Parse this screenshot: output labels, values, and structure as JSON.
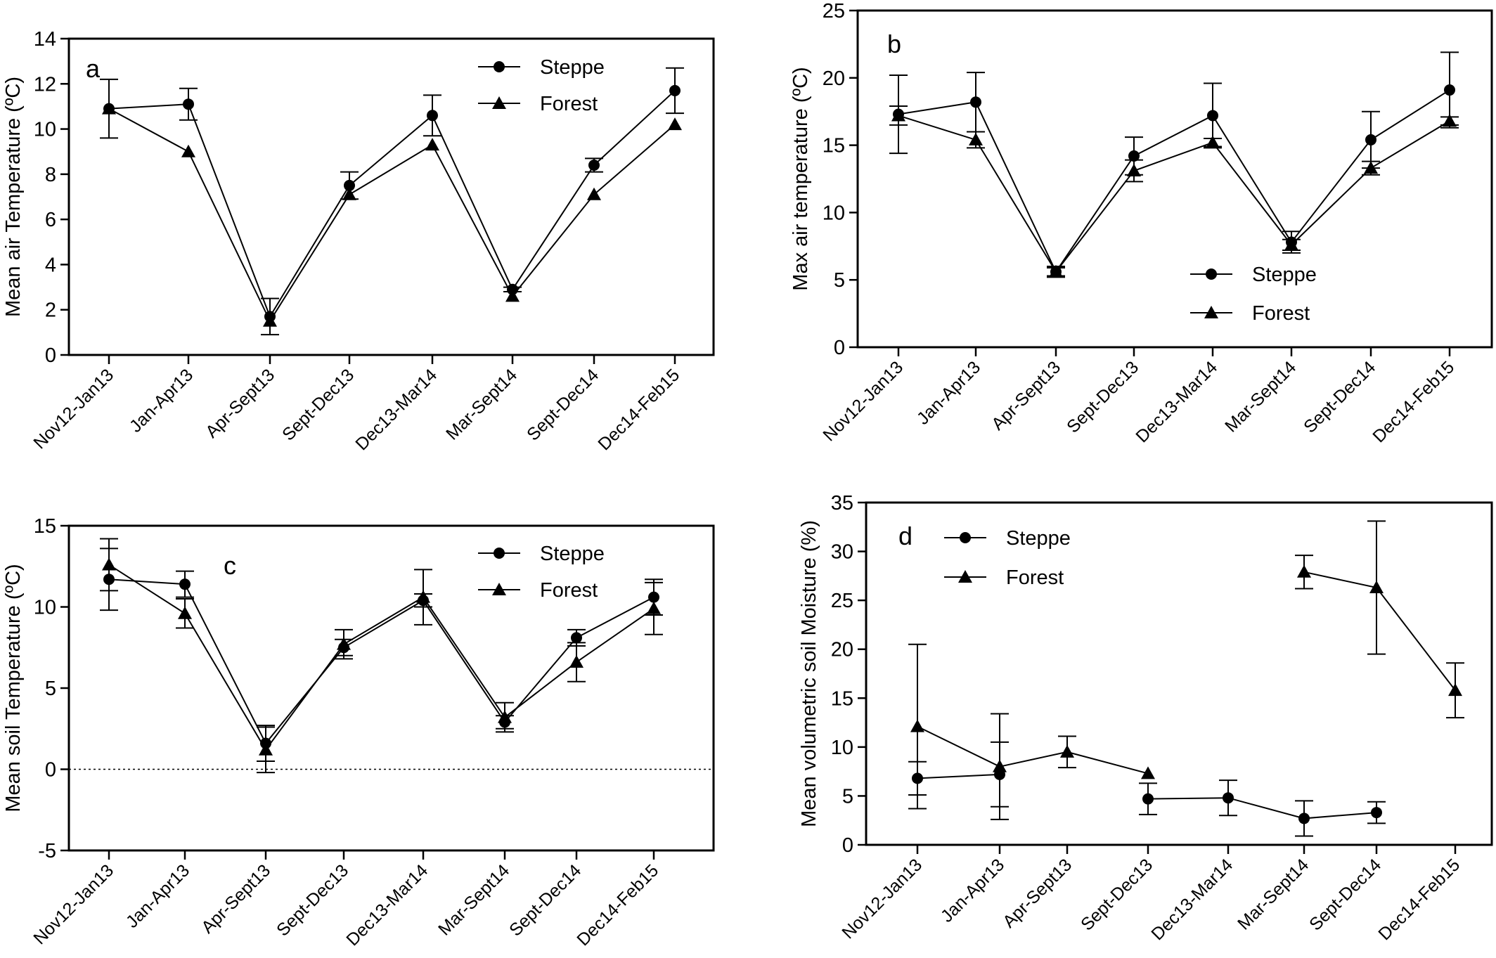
{
  "chart_data": [
    {
      "type": "line",
      "panel_label": "a",
      "categories": [
        "Nov12-Jan13",
        "Jan-Apr13",
        "Apr-Sept13",
        "Sept-Dec13",
        "Dec13-Mar14",
        "Mar-Sept14",
        "Sept-Dec14",
        "Dec14-Feb15"
      ],
      "ylabel": "Mean air Temperature  (ºC)",
      "ylim": [
        0,
        14
      ],
      "yticks": [
        0,
        2,
        4,
        6,
        8,
        10,
        12,
        14
      ],
      "legend_position": "top-right",
      "series": [
        {
          "name": "Steppe",
          "marker": "circle",
          "values": [
            10.9,
            11.1,
            1.7,
            7.5,
            10.6,
            2.9,
            8.4,
            11.7
          ],
          "err": [
            1.3,
            0.7,
            0.8,
            0.6,
            0.9,
            0.1,
            0.3,
            1.0
          ]
        },
        {
          "name": "Forest",
          "marker": "triangle",
          "values": [
            10.9,
            9.0,
            1.5,
            7.1,
            9.3,
            2.6,
            7.1,
            10.2
          ],
          "err": [
            0,
            0,
            0,
            0,
            0,
            0,
            0,
            0
          ]
        }
      ]
    },
    {
      "type": "line",
      "panel_label": "b",
      "categories": [
        "Nov12-Jan13",
        "Jan-Apr13",
        "Apr-Sept13",
        "Sept-Dec13",
        "Dec13-Mar14",
        "Mar-Sept14",
        "Sept-Dec14",
        "Dec14-Feb15"
      ],
      "ylabel": "Max air temperature (ºC)",
      "ylim": [
        0,
        25
      ],
      "yticks": [
        0,
        5,
        10,
        15,
        20,
        25
      ],
      "legend_position": "bottom-right",
      "series": [
        {
          "name": "Steppe",
          "marker": "circle",
          "values": [
            17.3,
            18.2,
            5.6,
            14.2,
            17.2,
            7.8,
            15.4,
            19.1
          ],
          "err": [
            2.9,
            2.2,
            0.3,
            1.4,
            2.4,
            0.8,
            2.1,
            2.8
          ]
        },
        {
          "name": "Forest",
          "marker": "triangle",
          "values": [
            17.2,
            15.4,
            5.6,
            13.1,
            15.2,
            7.6,
            13.3,
            16.8
          ],
          "err": [
            0.7,
            0.6,
            0.4,
            0.8,
            0.3,
            0.4,
            0.5,
            0.3
          ]
        }
      ]
    },
    {
      "type": "line",
      "panel_label": "c",
      "categories": [
        "Nov12-Jan13",
        "Jan-Apr13",
        "Apr-Sept13",
        "Sept-Dec13",
        "Dec13-Mar14",
        "Mar-Sept14",
        "Sept-Dec14",
        "Dec14-Feb15"
      ],
      "ylabel": "Mean soil Temperature (ºC)",
      "ylim": [
        -5,
        15
      ],
      "yticks": [
        -5,
        0,
        5,
        10,
        15
      ],
      "zero_line": "dotted",
      "legend_position": "top-right",
      "series": [
        {
          "name": "Steppe",
          "marker": "circle",
          "values": [
            11.7,
            11.4,
            1.6,
            7.5,
            10.4,
            2.9,
            8.1,
            10.6
          ],
          "err": [
            1.9,
            0.8,
            1.1,
            0.5,
            0.4,
            0.4,
            0.5,
            1.1
          ]
        },
        {
          "name": "Forest",
          "marker": "triangle",
          "values": [
            12.6,
            9.6,
            1.2,
            7.7,
            10.6,
            3.2,
            6.6,
            9.9
          ],
          "err": [
            1.6,
            0.9,
            1.4,
            0.9,
            1.7,
            0.9,
            1.2,
            1.6
          ]
        }
      ]
    },
    {
      "type": "line",
      "panel_label": "d",
      "categories": [
        "Nov12-Jan13",
        "Jan-Apr13",
        "Apr-Sept13",
        "Sept-Dec13",
        "Dec13-Mar14",
        "Mar-Sept14",
        "Sept-Dec14",
        "Dec14-Feb15"
      ],
      "ylabel": "Mean volumetric soil Moisture (%)",
      "ylim": [
        0,
        35
      ],
      "yticks": [
        0,
        5,
        10,
        15,
        20,
        25,
        30,
        35
      ],
      "legend_position": "top-left",
      "series": [
        {
          "name": "Steppe",
          "marker": "circle",
          "values": [
            6.8,
            7.2,
            null,
            4.7,
            4.8,
            2.7,
            3.3,
            null
          ],
          "err": [
            1.7,
            3.3,
            0,
            1.6,
            1.8,
            1.8,
            1.1,
            0
          ]
        },
        {
          "name": "Forest",
          "marker": "triangle",
          "values": [
            12.1,
            8.0,
            9.5,
            7.3,
            null,
            27.9,
            26.3,
            15.8
          ],
          "err": [
            8.4,
            5.4,
            1.6,
            0,
            0,
            1.7,
            6.8,
            2.8
          ]
        }
      ]
    }
  ]
}
